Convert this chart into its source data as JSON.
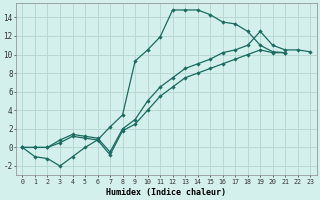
{
  "xlabel": "Humidex (Indice chaleur)",
  "bg_color": "#d4f0ec",
  "grid_color": "#b8d8d4",
  "line_color": "#1a6b60",
  "xlim": [
    -0.5,
    23.5
  ],
  "ylim": [
    -3,
    15.5
  ],
  "xticks": [
    0,
    1,
    2,
    3,
    4,
    5,
    6,
    7,
    8,
    9,
    10,
    11,
    12,
    13,
    14,
    15,
    16,
    17,
    18,
    19,
    20,
    21,
    22,
    23
  ],
  "yticks": [
    -2,
    0,
    2,
    4,
    6,
    8,
    10,
    12,
    14
  ],
  "line1_y": [
    0.0,
    -1.0,
    -1.2,
    -2.0,
    -1.0,
    0.0,
    0.8,
    2.2,
    3.5,
    9.3,
    10.5,
    11.9,
    14.8,
    14.8,
    14.8,
    14.3,
    13.5,
    13.3,
    12.5,
    11.0,
    10.3,
    10.2,
    null,
    null
  ],
  "line2_y": [
    0.0,
    0.0,
    0.0,
    0.5,
    1.2,
    1.0,
    0.8,
    -0.8,
    1.8,
    2.5,
    4.0,
    5.5,
    6.5,
    7.5,
    8.0,
    8.5,
    9.0,
    9.5,
    10.0,
    10.5,
    10.2,
    10.2,
    null,
    null
  ],
  "line3_y": [
    0.0,
    0.0,
    0.0,
    0.8,
    1.4,
    1.2,
    1.0,
    -0.5,
    2.0,
    3.0,
    5.0,
    6.5,
    7.5,
    8.5,
    9.0,
    9.5,
    10.2,
    10.5,
    11.0,
    12.5,
    11.0,
    10.5,
    10.5,
    10.3
  ],
  "line1_end": 21,
  "line2_end": 21
}
